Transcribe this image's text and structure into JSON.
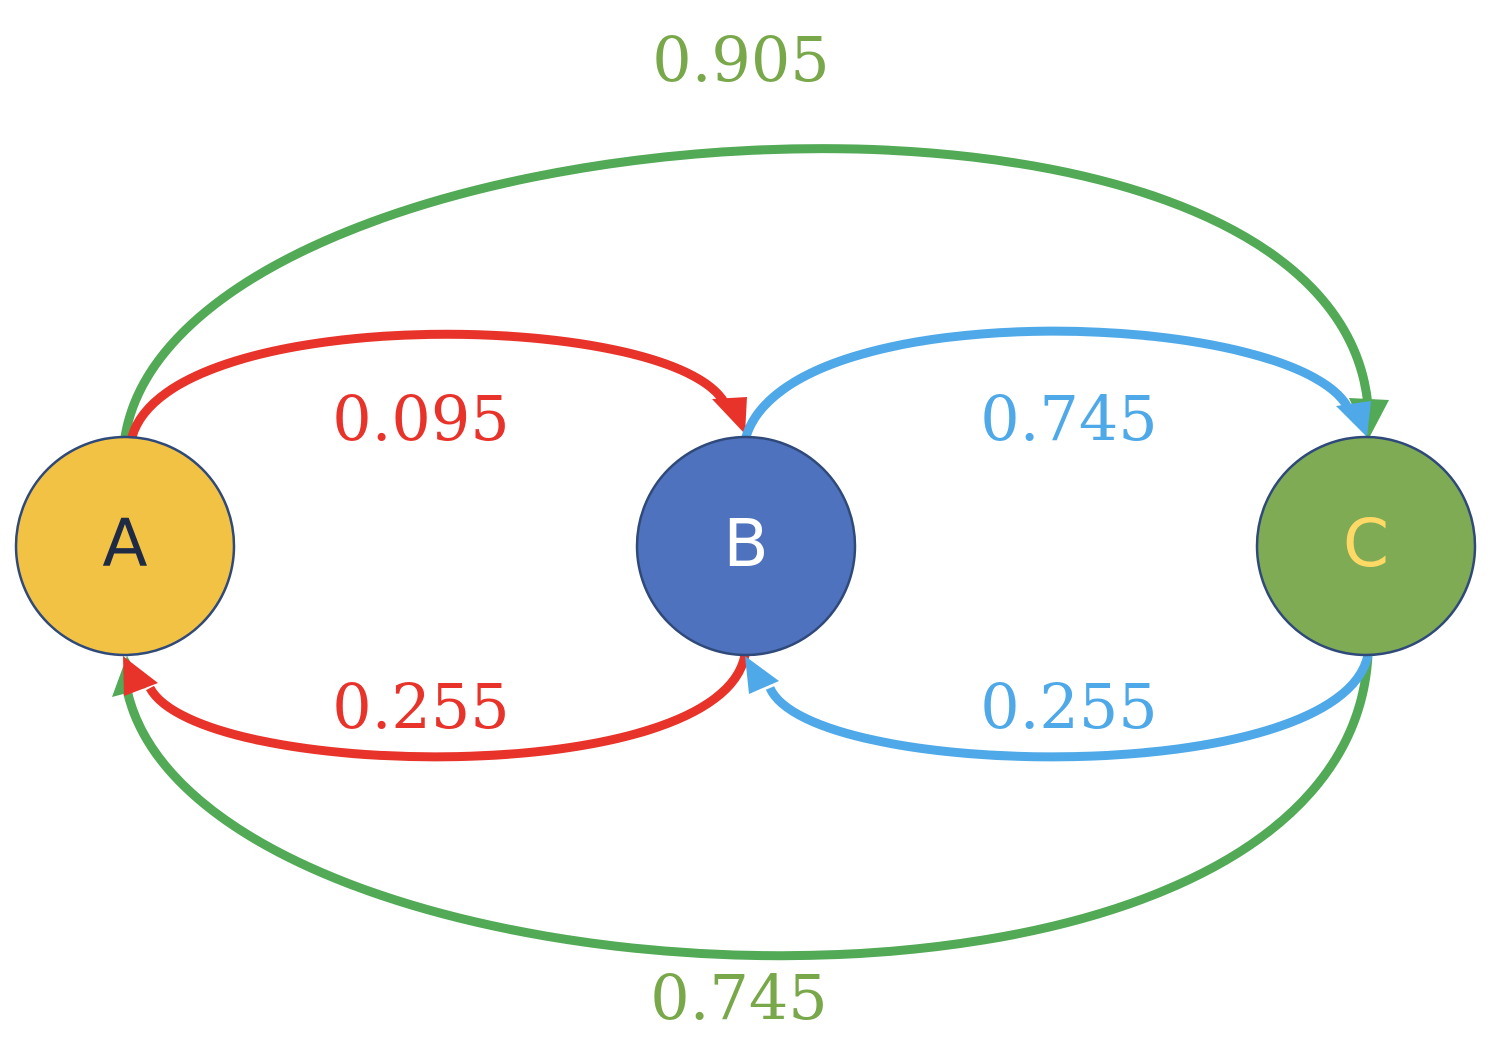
{
  "nodes": {
    "a": {
      "label": "A",
      "fill": "#F2C244",
      "text_color": "#1F2A44",
      "stroke": "#2F4A7A"
    },
    "b": {
      "label": "B",
      "fill": "#4F72BE",
      "text_color": "#FFFFFF",
      "stroke": "#2F4A7A"
    },
    "c": {
      "label": "C",
      "fill": "#7FAB55",
      "text_color": "#FFD966",
      "stroke": "#2F4A7A"
    }
  },
  "edges": {
    "a_to_b": {
      "from": "A",
      "to": "B",
      "weight": "0.095",
      "color": "#E8332A",
      "label_color": "#E8332A"
    },
    "b_to_a": {
      "from": "B",
      "to": "A",
      "weight": "0.255",
      "color": "#E8332A",
      "label_color": "#E8332A"
    },
    "b_to_c": {
      "from": "B",
      "to": "C",
      "weight": "0.745",
      "color": "#4FA9E8",
      "label_color": "#4FA9E8"
    },
    "c_to_b": {
      "from": "C",
      "to": "B",
      "weight": "0.255",
      "color": "#4FA9E8",
      "label_color": "#4FA9E8"
    },
    "a_to_c": {
      "from": "A",
      "to": "C",
      "weight": "0.905",
      "color": "#52A956",
      "label_color": "#79A84B"
    },
    "c_to_a": {
      "from": "C",
      "to": "A",
      "weight": "0.745",
      "color": "#52A956",
      "label_color": "#79A84B"
    }
  }
}
